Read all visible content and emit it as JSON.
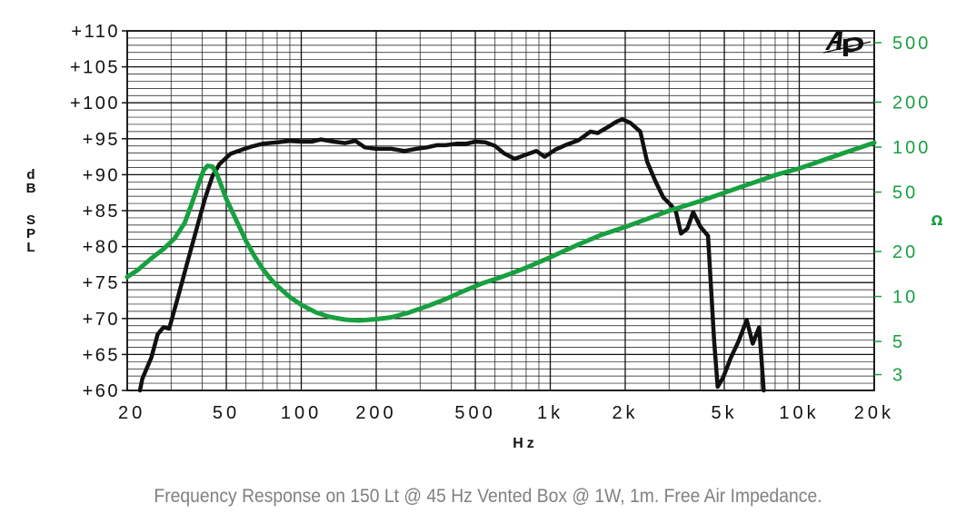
{
  "chart_data": {
    "type": "line",
    "title": "",
    "xlabel": "Hz",
    "ylabel": "dB SPL",
    "y2label": "Ω",
    "xscale": "log",
    "xlim": [
      20,
      20000
    ],
    "ylim": [
      60,
      110
    ],
    "y2scale": "log",
    "y2lim": [
      2.35,
      600
    ],
    "grid": true,
    "legend": "none",
    "x_ticks": [
      {
        "value": 20,
        "label": "20"
      },
      {
        "value": 50,
        "label": "50"
      },
      {
        "value": 100,
        "label": "100"
      },
      {
        "value": 200,
        "label": "200"
      },
      {
        "value": 500,
        "label": "500"
      },
      {
        "value": 1000,
        "label": "1k"
      },
      {
        "value": 2000,
        "label": "2k"
      },
      {
        "value": 5000,
        "label": "5k"
      },
      {
        "value": 10000,
        "label": "10k"
      },
      {
        "value": 20000,
        "label": "20k"
      }
    ],
    "y_ticks": [
      {
        "value": 110,
        "label": "+110"
      },
      {
        "value": 105,
        "label": "+105"
      },
      {
        "value": 100,
        "label": "+100"
      },
      {
        "value": 95,
        "label": "+95"
      },
      {
        "value": 90,
        "label": "+90"
      },
      {
        "value": 85,
        "label": "+85"
      },
      {
        "value": 80,
        "label": "+80"
      },
      {
        "value": 75,
        "label": "+75"
      },
      {
        "value": 70,
        "label": "+70"
      },
      {
        "value": 65,
        "label": "+65"
      },
      {
        "value": 60,
        "label": "+60"
      }
    ],
    "y2_ticks": [
      {
        "value": 500,
        "label": "500"
      },
      {
        "value": 200,
        "label": "200"
      },
      {
        "value": 100,
        "label": "100"
      },
      {
        "value": 50,
        "label": "50"
      },
      {
        "value": 20,
        "label": "20"
      },
      {
        "value": 10,
        "label": "10"
      },
      {
        "value": 5,
        "label": "5"
      },
      {
        "value": 3,
        "label": "3"
      }
    ],
    "series": [
      {
        "axis": "left",
        "color": "#111111",
        "points": [
          [
            22.5,
            60
          ],
          [
            23,
            61.6
          ],
          [
            25,
            64.6
          ],
          [
            26.5,
            67.8
          ],
          [
            28,
            68.8
          ],
          [
            29.5,
            68.6
          ],
          [
            32,
            73
          ],
          [
            35,
            78
          ],
          [
            38,
            82.5
          ],
          [
            41,
            86.6
          ],
          [
            44,
            89.8
          ],
          [
            47,
            91.5
          ],
          [
            52,
            92.9
          ],
          [
            58,
            93.5
          ],
          [
            63,
            93.9
          ],
          [
            70,
            94.3
          ],
          [
            80,
            94.5
          ],
          [
            90,
            94.7
          ],
          [
            100,
            94.6
          ],
          [
            110,
            94.6
          ],
          [
            120,
            94.9
          ],
          [
            135,
            94.6
          ],
          [
            150,
            94.4
          ],
          [
            165,
            94.7
          ],
          [
            180,
            93.8
          ],
          [
            200,
            93.6
          ],
          [
            230,
            93.6
          ],
          [
            260,
            93.3
          ],
          [
            290,
            93.6
          ],
          [
            320,
            93.8
          ],
          [
            350,
            94.1
          ],
          [
            380,
            94.1
          ],
          [
            420,
            94.3
          ],
          [
            460,
            94.3
          ],
          [
            500,
            94.6
          ],
          [
            550,
            94.5
          ],
          [
            600,
            94.0
          ],
          [
            650,
            93.0
          ],
          [
            720,
            92.2
          ],
          [
            800,
            92.8
          ],
          [
            880,
            93.3
          ],
          [
            950,
            92.5
          ],
          [
            1050,
            93.5
          ],
          [
            1150,
            94.1
          ],
          [
            1300,
            94.8
          ],
          [
            1450,
            96.0
          ],
          [
            1550,
            95.8
          ],
          [
            1700,
            96.6
          ],
          [
            1850,
            97.4
          ],
          [
            1950,
            97.7
          ],
          [
            2100,
            97.2
          ],
          [
            2300,
            96.0
          ],
          [
            2450,
            91.8
          ],
          [
            2650,
            89.0
          ],
          [
            2850,
            86.8
          ],
          [
            3050,
            85.8
          ],
          [
            3200,
            84.8
          ],
          [
            3350,
            81.8
          ],
          [
            3550,
            82.5
          ],
          [
            3750,
            84.8
          ],
          [
            4000,
            82.8
          ],
          [
            4300,
            81.5
          ],
          [
            4550,
            67.0
          ],
          [
            4700,
            60.5
          ],
          [
            4950,
            61.8
          ],
          [
            5300,
            64.5
          ],
          [
            5700,
            66.8
          ],
          [
            6150,
            69.8
          ],
          [
            6500,
            66.5
          ],
          [
            6900,
            68.8
          ],
          [
            7200,
            60
          ]
        ]
      },
      {
        "axis": "right",
        "color": "#18a040",
        "points": [
          [
            20,
            13.5
          ],
          [
            22,
            15
          ],
          [
            25,
            18
          ],
          [
            28,
            20.8
          ],
          [
            31,
            24.5
          ],
          [
            34,
            31
          ],
          [
            36,
            40
          ],
          [
            38,
            52
          ],
          [
            40.5,
            70
          ],
          [
            42,
            75
          ],
          [
            44,
            74
          ],
          [
            46,
            65
          ],
          [
            50,
            45
          ],
          [
            55,
            32
          ],
          [
            60,
            23.5
          ],
          [
            65,
            18.5
          ],
          [
            70,
            15.3
          ],
          [
            75,
            13.2
          ],
          [
            80,
            11.8
          ],
          [
            90,
            9.9
          ],
          [
            100,
            8.8
          ],
          [
            115,
            7.8
          ],
          [
            130,
            7.3
          ],
          [
            150,
            7.0
          ],
          [
            170,
            6.9
          ],
          [
            200,
            7.05
          ],
          [
            230,
            7.25
          ],
          [
            270,
            7.8
          ],
          [
            320,
            8.6
          ],
          [
            380,
            9.6
          ],
          [
            450,
            10.9
          ],
          [
            530,
            12.2
          ],
          [
            620,
            13.3
          ],
          [
            700,
            14.3
          ],
          [
            800,
            15.6
          ],
          [
            950,
            17.6
          ],
          [
            1100,
            19.7
          ],
          [
            1300,
            22.3
          ],
          [
            1600,
            25.8
          ],
          [
            2000,
            29.2
          ],
          [
            2500,
            33.5
          ],
          [
            3000,
            37.5
          ],
          [
            4000,
            43.5
          ],
          [
            5000,
            49.5
          ],
          [
            6000,
            55
          ],
          [
            7000,
            60
          ],
          [
            8000,
            65
          ],
          [
            10000,
            72
          ],
          [
            12000,
            80
          ],
          [
            15000,
            91
          ],
          [
            20000,
            107
          ]
        ]
      }
    ]
  },
  "caption": "Frequency Response on 150 Lt @ 45 Hz Vented Box @ 1W, 1m. Free Air Impedance."
}
